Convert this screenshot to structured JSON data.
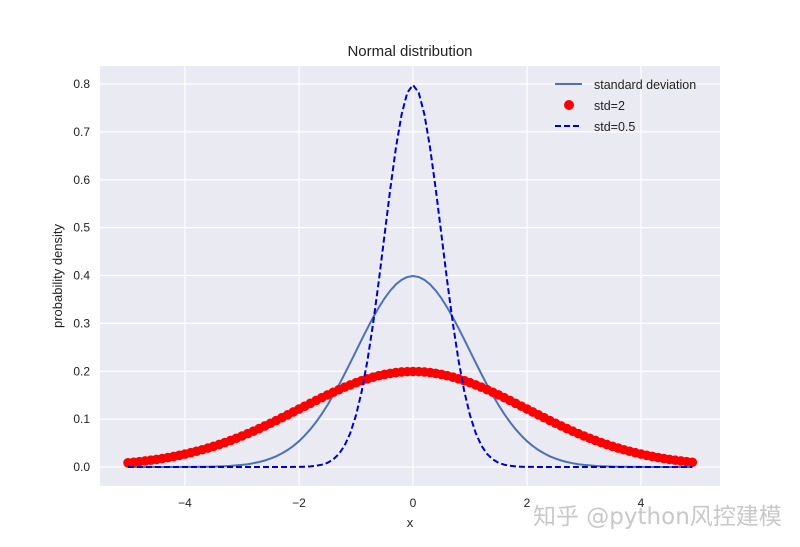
{
  "chart_data": {
    "type": "line",
    "title": "Normal distribution",
    "xlabel": "x",
    "ylabel": "probability density",
    "xlim": [
      -5.5,
      5.4
    ],
    "ylim": [
      -0.04,
      0.84
    ],
    "xticks": [
      -4,
      -2,
      0,
      2,
      4
    ],
    "xtick_labels": [
      "−4",
      "−2",
      "0",
      "2",
      "4"
    ],
    "yticks": [
      0.0,
      0.1,
      0.2,
      0.3,
      0.4,
      0.5,
      0.6,
      0.7,
      0.8
    ],
    "ytick_labels": [
      "0.0",
      "0.1",
      "0.2",
      "0.3",
      "0.4",
      "0.5",
      "0.6",
      "0.7",
      "0.8"
    ],
    "grid": true,
    "legend_position": "upper right",
    "x_range": [
      -5,
      4.9
    ],
    "x_step": 0.1,
    "series": [
      {
        "name": "standard deviation",
        "mean": 0,
        "std": 1,
        "style": "solid-line",
        "color": "#4c72b0",
        "peak": 0.399
      },
      {
        "name": "std=2",
        "mean": 0,
        "std": 2,
        "style": "circle-markers",
        "color": "#ff0000",
        "peak": 0.199
      },
      {
        "name": "std=0.5",
        "mean": 0,
        "std": 0.5,
        "style": "dashed-line",
        "color": "#0000c8",
        "peak": 0.798
      }
    ]
  },
  "legend": {
    "items": [
      "standard deviation",
      "std=2",
      "std=0.5"
    ]
  },
  "watermark": "知乎 @python风控建模",
  "colors": {
    "plot_bg": "#eaeaf2",
    "grid": "#ffffff"
  }
}
